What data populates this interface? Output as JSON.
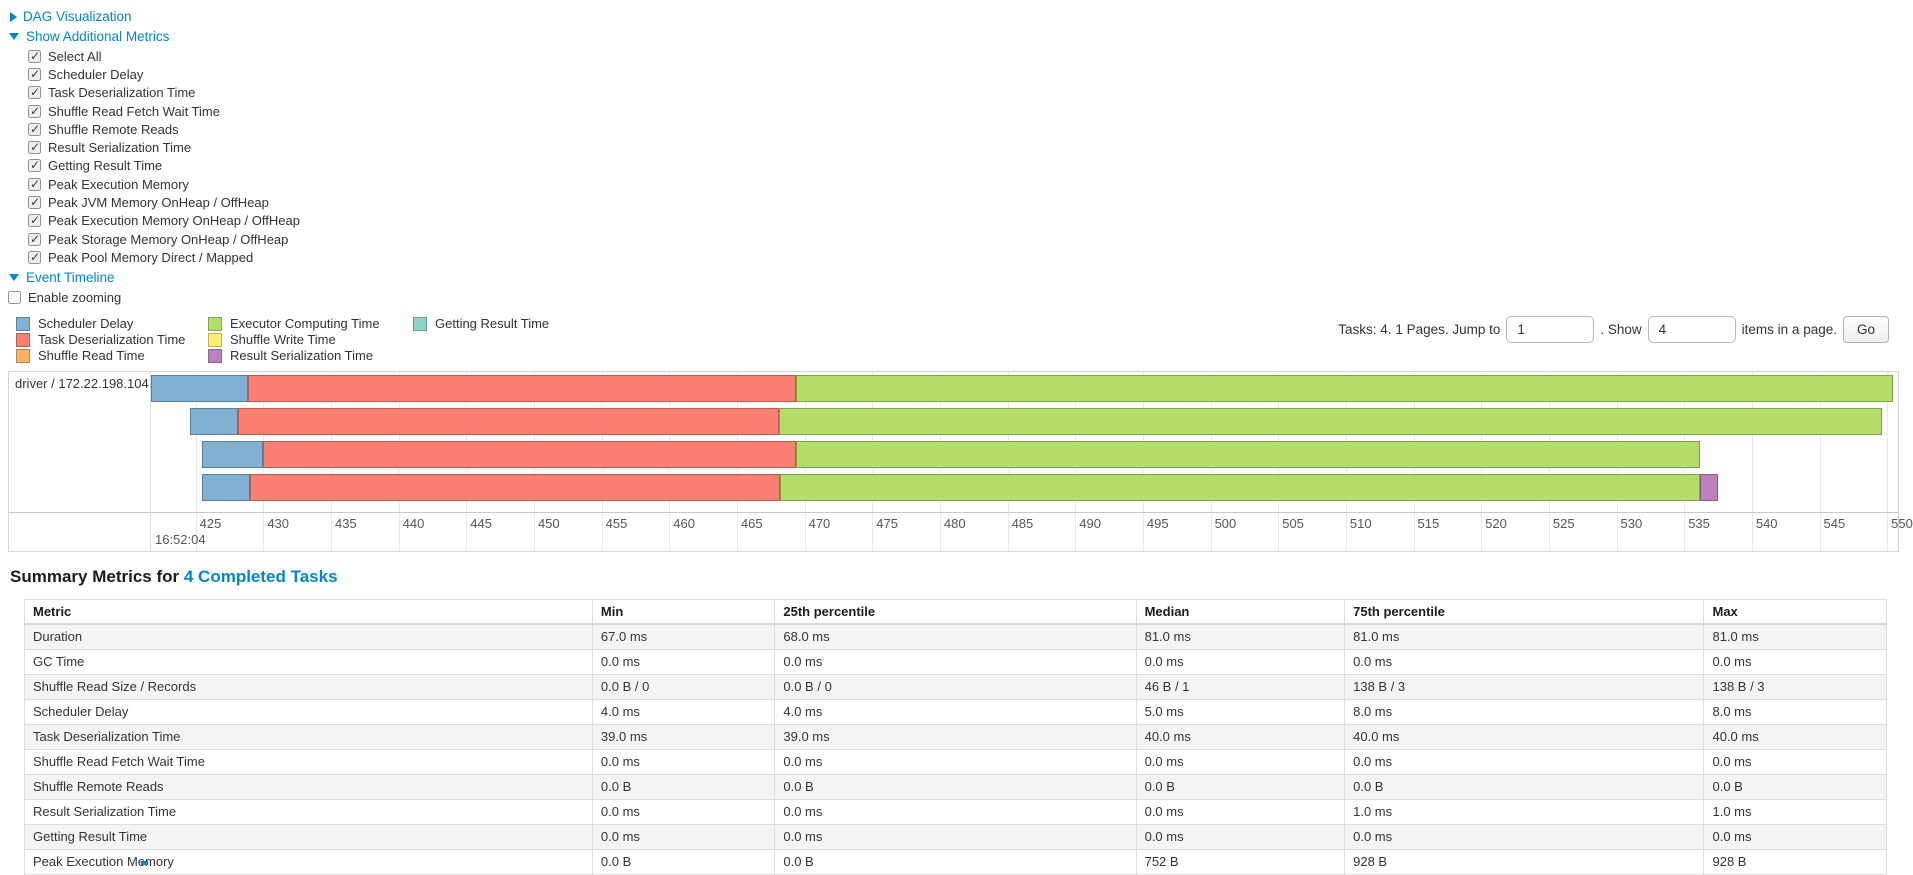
{
  "toggles": {
    "dag": {
      "label": "DAG Visualization",
      "state": "collapsed"
    },
    "metrics": {
      "label": "Show Additional Metrics",
      "state": "expanded"
    },
    "timeline": {
      "label": "Event Timeline",
      "state": "expanded"
    }
  },
  "metric_checkboxes": [
    {
      "label": "Select All",
      "checked": true
    },
    {
      "label": "Scheduler Delay",
      "checked": true
    },
    {
      "label": "Task Deserialization Time",
      "checked": true
    },
    {
      "label": "Shuffle Read Fetch Wait Time",
      "checked": true
    },
    {
      "label": "Shuffle Remote Reads",
      "checked": true
    },
    {
      "label": "Result Serialization Time",
      "checked": true
    },
    {
      "label": "Getting Result Time",
      "checked": true
    },
    {
      "label": "Peak Execution Memory",
      "checked": true
    },
    {
      "label": "Peak JVM Memory OnHeap / OffHeap",
      "checked": true
    },
    {
      "label": "Peak Execution Memory OnHeap / OffHeap",
      "checked": true
    },
    {
      "label": "Peak Storage Memory OnHeap / OffHeap",
      "checked": true
    },
    {
      "label": "Peak Pool Memory Direct / Mapped",
      "checked": true
    }
  ],
  "enable_zooming": {
    "label": "Enable zooming",
    "checked": false
  },
  "legend": [
    {
      "label": "Scheduler Delay",
      "color": "#80B1D3"
    },
    {
      "label": "Task Deserialization Time",
      "color": "#FB8072"
    },
    {
      "label": "Shuffle Read Time",
      "color": "#FDB462"
    },
    {
      "label": "Executor Computing Time",
      "color": "#B3DE69"
    },
    {
      "label": "Shuffle Write Time",
      "color": "#FFED6F"
    },
    {
      "label": "Result Serialization Time",
      "color": "#BC80BD"
    },
    {
      "label": "Getting Result Time",
      "color": "#8DD3C7"
    }
  ],
  "pagination": {
    "prefix": "Tasks: 4. 1 Pages. Jump to",
    "jump_value": "1",
    "mid": ". Show",
    "show_value": "4",
    "suffix": "items in a page.",
    "go_label": "Go"
  },
  "chart_data": {
    "type": "timeline",
    "title": "Event Timeline",
    "group_label": "driver / 172.22.198.104",
    "axis": {
      "min": 421.7,
      "max": 550.8,
      "tick_step": 5,
      "ticks": [
        425,
        430,
        435,
        440,
        445,
        450,
        455,
        460,
        465,
        470,
        475,
        480,
        485,
        490,
        495,
        500,
        505,
        510,
        515,
        520,
        525,
        530,
        535,
        540,
        545,
        550
      ],
      "major_label": "16:52:04"
    },
    "colors": {
      "scheduler_delay": "#80B1D3",
      "task_deserialization": "#FB8072",
      "shuffle_read": "#FDB462",
      "executor_computing": "#B3DE69",
      "shuffle_write": "#FFED6F",
      "result_serialization": "#BC80BD",
      "getting_result": "#8DD3C7"
    },
    "tasks": [
      {
        "segments": [
          {
            "name": "scheduler_delay",
            "start": 421.7,
            "end": 428.9
          },
          {
            "name": "task_deserialization",
            "start": 428.9,
            "end": 469.4
          },
          {
            "name": "executor_computing",
            "start": 469.4,
            "end": 550.4
          }
        ]
      },
      {
        "segments": [
          {
            "name": "scheduler_delay",
            "start": 424.6,
            "end": 428.1
          },
          {
            "name": "task_deserialization",
            "start": 428.1,
            "end": 468.1
          },
          {
            "name": "executor_computing",
            "start": 468.1,
            "end": 549.6
          }
        ]
      },
      {
        "segments": [
          {
            "name": "scheduler_delay",
            "start": 425.5,
            "end": 430.0
          },
          {
            "name": "task_deserialization",
            "start": 430.0,
            "end": 469.4
          },
          {
            "name": "executor_computing",
            "start": 469.4,
            "end": 536.2
          }
        ]
      },
      {
        "segments": [
          {
            "name": "scheduler_delay",
            "start": 425.5,
            "end": 429.0
          },
          {
            "name": "task_deserialization",
            "start": 429.0,
            "end": 468.2
          },
          {
            "name": "executor_computing",
            "start": 468.2,
            "end": 536.2
          },
          {
            "name": "result_serialization",
            "start": 536.2,
            "end": 537.5
          }
        ]
      }
    ]
  },
  "summary": {
    "title_prefix": "Summary Metrics for",
    "title_link": "4 Completed Tasks",
    "table": {
      "headers": [
        "Metric",
        "Min",
        "25th percentile",
        "Median",
        "75th percentile",
        "Max"
      ],
      "rows": [
        [
          "Duration",
          "67.0 ms",
          "68.0 ms",
          "81.0 ms",
          "81.0 ms",
          "81.0 ms"
        ],
        [
          "GC Time",
          "0.0 ms",
          "0.0 ms",
          "0.0 ms",
          "0.0 ms",
          "0.0 ms"
        ],
        [
          "Shuffle Read Size / Records",
          "0.0 B / 0",
          "0.0 B / 0",
          "46 B / 1",
          "138 B / 3",
          "138 B / 3"
        ],
        [
          "Scheduler Delay",
          "4.0 ms",
          "4.0 ms",
          "5.0 ms",
          "8.0 ms",
          "8.0 ms"
        ],
        [
          "Task Deserialization Time",
          "39.0 ms",
          "39.0 ms",
          "40.0 ms",
          "40.0 ms",
          "40.0 ms"
        ],
        [
          "Shuffle Read Fetch Wait Time",
          "0.0 ms",
          "0.0 ms",
          "0.0 ms",
          "0.0 ms",
          "0.0 ms"
        ],
        [
          "Shuffle Remote Reads",
          "0.0 B",
          "0.0 B",
          "0.0 B",
          "0.0 B",
          "0.0 B"
        ],
        [
          "Result Serialization Time",
          "0.0 ms",
          "0.0 ms",
          "0.0 ms",
          "1.0 ms",
          "1.0 ms"
        ],
        [
          "Getting Result Time",
          "0.0 ms",
          "0.0 ms",
          "0.0 ms",
          "0.0 ms",
          "0.0 ms"
        ],
        [
          "Peak Execution Memory",
          "0.0 B",
          "0.0 B",
          "752 B",
          "928 B",
          "928 B"
        ]
      ]
    }
  }
}
